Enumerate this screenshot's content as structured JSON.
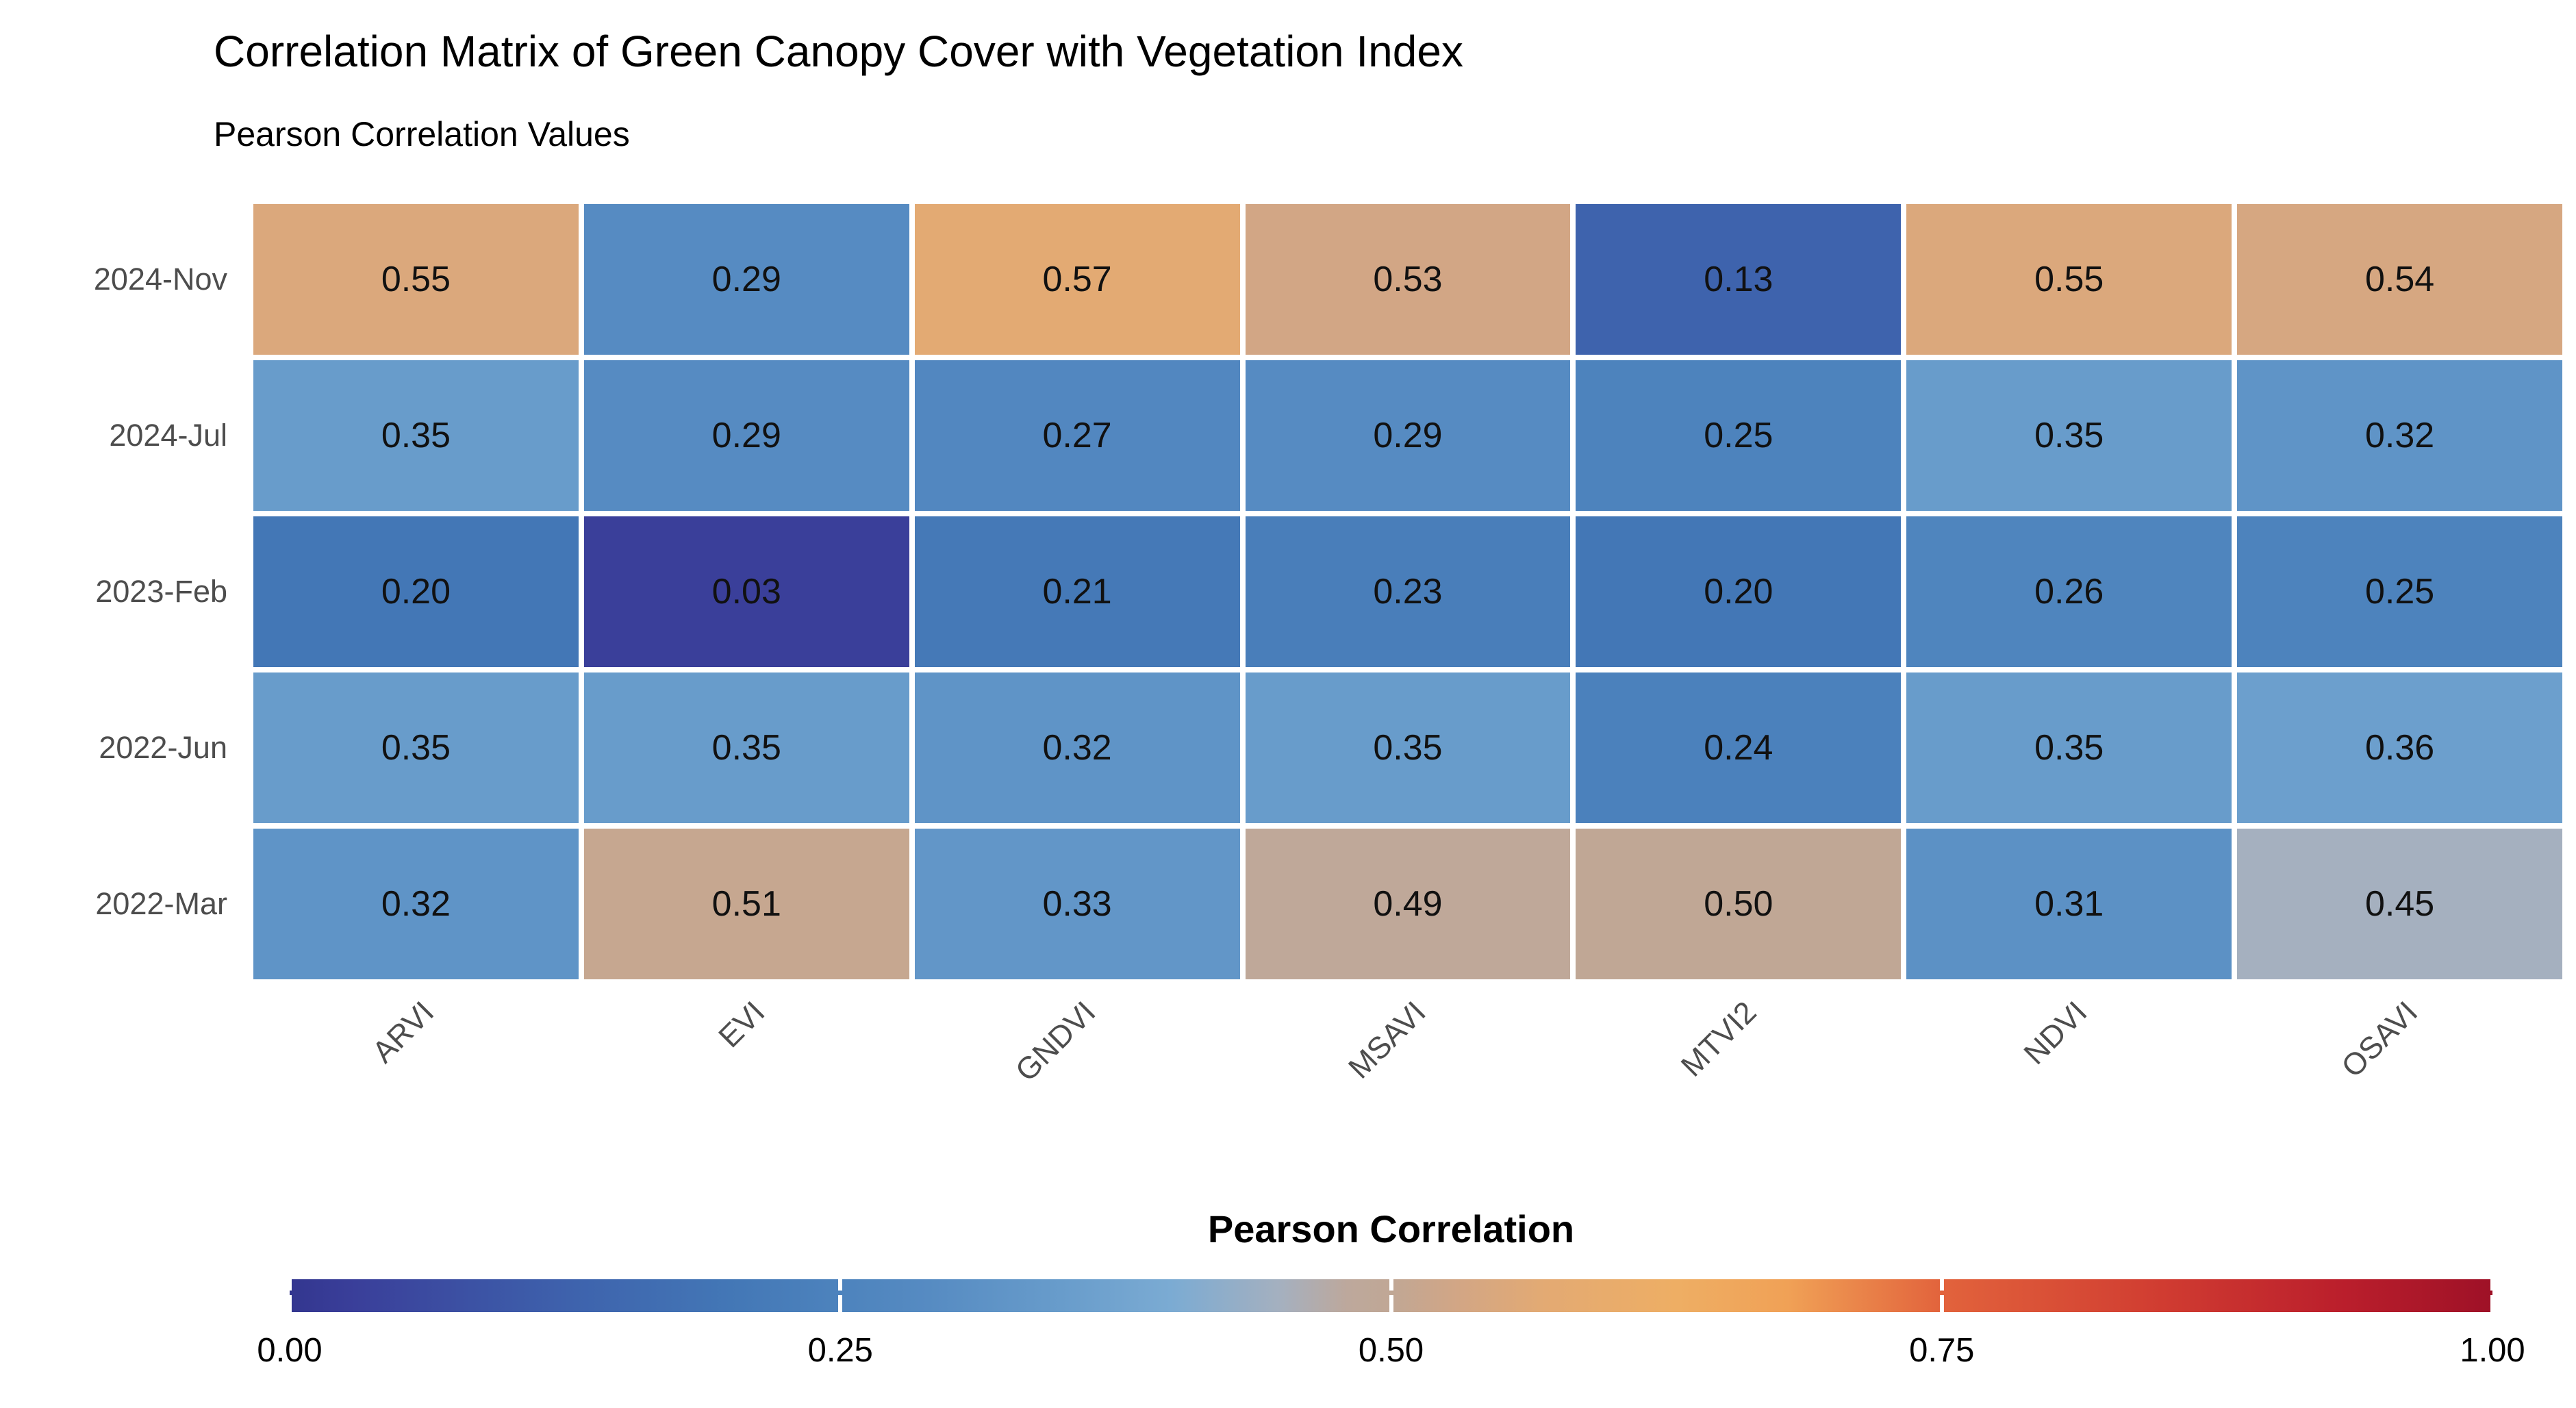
{
  "title": "Correlation Matrix of Green Canopy Cover with Vegetation Index",
  "subtitle": "Pearson Correlation Values",
  "colors": {
    "background": "#ffffff",
    "title_text": "#000000",
    "axis_text": "#4d4d4d",
    "cell_text": "#111111",
    "cell_gap": "#ffffff"
  },
  "chart_data": {
    "type": "heatmap",
    "title": "Correlation Matrix of Green Canopy Cover with Vegetation Index",
    "subtitle": "Pearson Correlation Values",
    "rows": [
      "2024-Nov",
      "2024-Jul",
      "2023-Feb",
      "2022-Jun",
      "2022-Mar"
    ],
    "columns": [
      "ARVI",
      "EVI",
      "GNDVI",
      "MSAVI",
      "MTVI2",
      "NDVI",
      "OSAVI"
    ],
    "values": [
      [
        0.55,
        0.29,
        0.57,
        0.53,
        0.13,
        0.55,
        0.54
      ],
      [
        0.35,
        0.29,
        0.27,
        0.29,
        0.25,
        0.35,
        0.32
      ],
      [
        0.2,
        0.03,
        0.21,
        0.23,
        0.2,
        0.26,
        0.25
      ],
      [
        0.35,
        0.35,
        0.32,
        0.35,
        0.24,
        0.35,
        0.36
      ],
      [
        0.32,
        0.51,
        0.33,
        0.49,
        0.5,
        0.31,
        0.45
      ]
    ],
    "value_decimals": 2,
    "grid": "white gaps between tiles",
    "x_label_rotation_deg": 45,
    "legend": {
      "title": "Pearson Correlation",
      "position": "bottom",
      "range": [
        0,
        1
      ],
      "ticks": [
        "0.00",
        "0.25",
        "0.50",
        "0.75",
        "1.00"
      ],
      "tick_positions": [
        0,
        0.25,
        0.5,
        0.75,
        1
      ]
    },
    "colorscale": {
      "stops": [
        {
          "pos": 0.0,
          "color": "#33368f"
        },
        {
          "pos": 0.03,
          "color": "#3a3f9a"
        },
        {
          "pos": 0.13,
          "color": "#3e63ad"
        },
        {
          "pos": 0.2,
          "color": "#4377b6"
        },
        {
          "pos": 0.25,
          "color": "#4d83bd"
        },
        {
          "pos": 0.29,
          "color": "#568bc2"
        },
        {
          "pos": 0.35,
          "color": "#689ccb"
        },
        {
          "pos": 0.4,
          "color": "#7babd3"
        },
        {
          "pos": 0.45,
          "color": "#a5b0bf"
        },
        {
          "pos": 0.48,
          "color": "#bda89c"
        },
        {
          "pos": 0.5,
          "color": "#c0a795"
        },
        {
          "pos": 0.53,
          "color": "#d2a685"
        },
        {
          "pos": 0.57,
          "color": "#e3aa73"
        },
        {
          "pos": 0.63,
          "color": "#eeae64"
        },
        {
          "pos": 0.68,
          "color": "#f0a156"
        },
        {
          "pos": 0.75,
          "color": "#e2633c"
        },
        {
          "pos": 0.85,
          "color": "#d03c31"
        },
        {
          "pos": 0.93,
          "color": "#bb1f2c"
        },
        {
          "pos": 1.0,
          "color": "#9e1127"
        }
      ]
    }
  }
}
